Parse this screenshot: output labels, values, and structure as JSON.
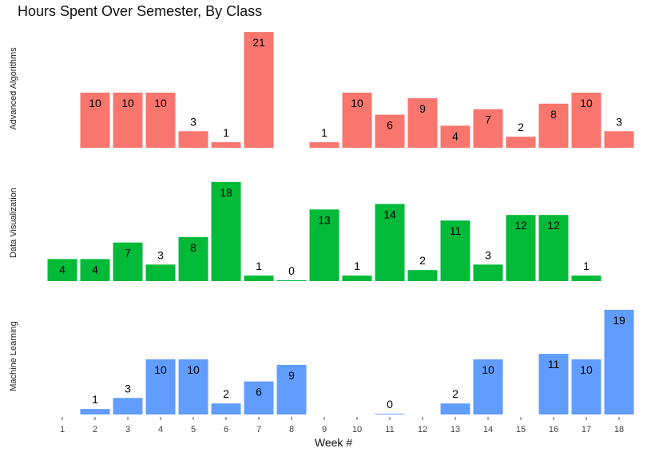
{
  "chart_data": {
    "type": "bar",
    "title": "Hours Spent Over Semester, By Class",
    "xlabel": "Week #",
    "categories": [
      "1",
      "2",
      "3",
      "4",
      "5",
      "6",
      "7",
      "8",
      "9",
      "10",
      "11",
      "12",
      "13",
      "14",
      "15",
      "16",
      "17",
      "18"
    ],
    "series": [
      {
        "name": "Advanced Algorithms",
        "color": "#F8766D",
        "values": [
          null,
          10,
          10,
          10,
          3,
          1,
          21,
          null,
          1,
          10,
          6,
          9,
          4,
          7,
          2,
          8,
          10,
          3
        ]
      },
      {
        "name": "Data Visualization",
        "color": "#00BA38",
        "values": [
          4,
          4,
          7,
          3,
          8,
          18,
          1,
          0,
          13,
          1,
          14,
          2,
          11,
          3,
          12,
          12,
          1,
          null
        ]
      },
      {
        "name": "Machine Learning",
        "color": "#619CFF",
        "values": [
          null,
          1,
          3,
          10,
          10,
          2,
          6,
          9,
          null,
          null,
          0,
          null,
          2,
          10,
          null,
          11,
          10,
          19
        ]
      }
    ],
    "grid": false,
    "legend": "none"
  }
}
